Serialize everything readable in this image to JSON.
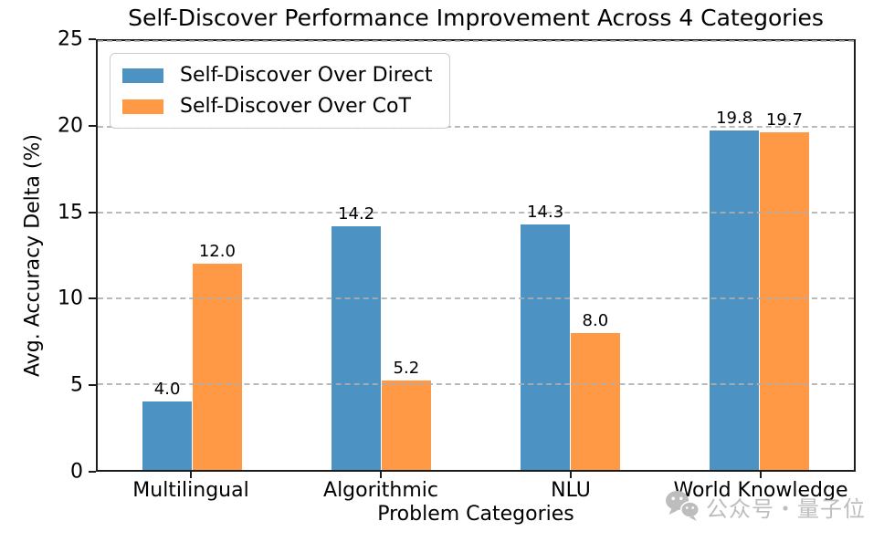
{
  "watermark": {
    "text": "公众号・量子位",
    "icon": "wechat-icon",
    "color": "#bdbdbd"
  },
  "chart_data": {
    "type": "bar",
    "title": "Self-Discover Performance Improvement Across 4 Categories",
    "xlabel": "Problem Categories",
    "ylabel": "Avg. Accuracy Delta (%)",
    "categories": [
      "Multilingual",
      "Algorithmic",
      "NLU",
      "World Knowledge"
    ],
    "series": [
      {
        "name": "Self-Discover Over Direct",
        "color": "#4C92C3",
        "values": [
          4.0,
          14.2,
          14.3,
          19.8
        ],
        "value_labels": [
          "4.0",
          "14.2",
          "14.3",
          "19.8"
        ]
      },
      {
        "name": "Self-Discover Over CoT",
        "color": "#FF9945",
        "values": [
          12.0,
          5.2,
          8.0,
          19.7
        ],
        "value_labels": [
          "12.0",
          "5.2",
          "8.0",
          "19.7"
        ]
      }
    ],
    "ylim": [
      0,
      25
    ],
    "yticks": [
      0,
      5,
      10,
      15,
      20,
      25
    ],
    "grid": "horizontal-dashed",
    "grid_color": "#aeaeae",
    "spine_color": "#1c1c1c",
    "legend_position": "upper-left"
  }
}
